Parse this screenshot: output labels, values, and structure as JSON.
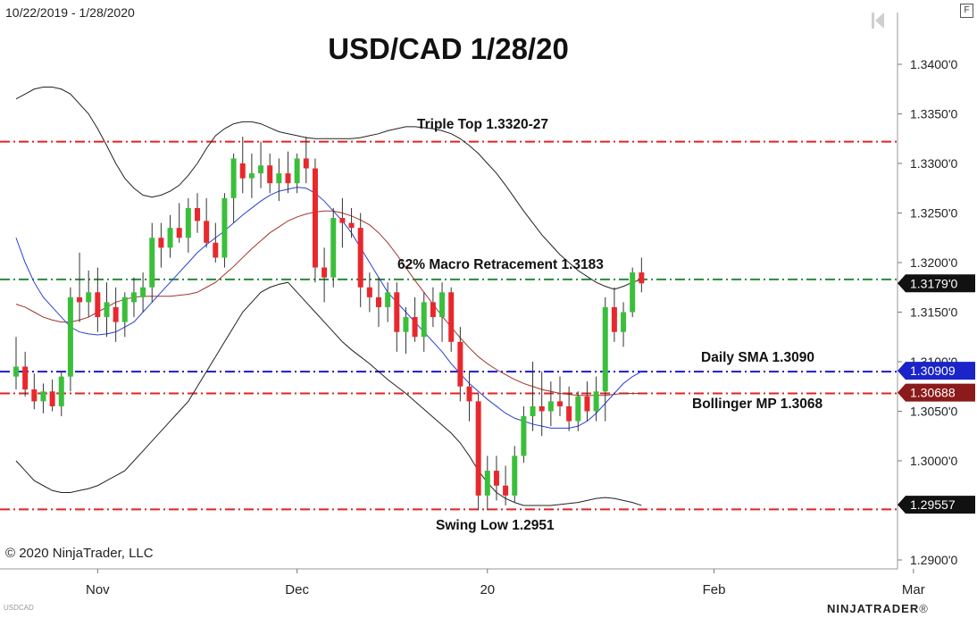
{
  "header": {
    "date_range": "10/22/2019 - 1/28/2020",
    "f_button": "F"
  },
  "title": "USD/CAD 1/28/20",
  "copyright": "© 2020 NinjaTrader, LLC",
  "symbol_label": "USDCAD",
  "brand": {
    "name": "NINJATRADER",
    "reg": "®"
  },
  "annotations": {
    "triple_top": "Triple Top 1.3320-27",
    "retracement": "62% Macro Retracement 1.3183",
    "daily_sma": "Daily SMA 1.3090",
    "bollinger_mp": "Bollinger MP 1.3068",
    "swing_low": "Swing Low 1.2951"
  },
  "colors": {
    "up": "#3bbf3b",
    "down": "#e8282d",
    "sma": "#2a3fd6",
    "mid": "#a0342b",
    "band": "#222222",
    "red_line": "#e32222",
    "green_line": "#2a8a3a",
    "blue_line": "#1a1ad0",
    "price_tag": "#111111",
    "sma_tag": "#1a24c8",
    "mp_tag": "#8b1a1a"
  },
  "chart_data": {
    "type": "candlestick",
    "title": "USD/CAD 1/28/20",
    "x_range": [
      "2019-10-22",
      "2020-01-28"
    ],
    "y_axis": {
      "min": 1.289,
      "max": 1.3425,
      "ticks": [
        1.34,
        1.335,
        1.33,
        1.325,
        1.32,
        1.315,
        1.31,
        1.305,
        1.3,
        1.29
      ],
      "tick_labels": [
        "1.3400'0",
        "1.3350'0",
        "1.3300'0",
        "1.3250'0",
        "1.3200'0",
        "1.3150'0",
        "1.3100'0",
        "1.3050'0",
        "1.3000'0",
        "1.2900'0"
      ]
    },
    "x_axis": {
      "labels": [
        "Nov",
        "Dec",
        "20",
        "Feb",
        "Mar"
      ],
      "label_bar_index": [
        9,
        31,
        52,
        77,
        99
      ]
    },
    "ohlc": [
      [
        1.3085,
        1.3125,
        1.3072,
        1.3095
      ],
      [
        1.3095,
        1.311,
        1.3065,
        1.3072
      ],
      [
        1.3072,
        1.3088,
        1.3052,
        1.306
      ],
      [
        1.306,
        1.3078,
        1.3048,
        1.307
      ],
      [
        1.307,
        1.3082,
        1.305,
        1.3055
      ],
      [
        1.3055,
        1.309,
        1.3045,
        1.3085
      ],
      [
        1.3085,
        1.3175,
        1.307,
        1.3165
      ],
      [
        1.3165,
        1.321,
        1.314,
        1.316
      ],
      [
        1.316,
        1.3192,
        1.3145,
        1.317
      ],
      [
        1.317,
        1.3195,
        1.313,
        1.3145
      ],
      [
        1.3145,
        1.318,
        1.3125,
        1.316
      ],
      [
        1.3155,
        1.3175,
        1.312,
        1.314
      ],
      [
        1.314,
        1.317,
        1.3125,
        1.3165
      ],
      [
        1.316,
        1.3185,
        1.3145,
        1.317
      ],
      [
        1.3165,
        1.319,
        1.315,
        1.3175
      ],
      [
        1.3175,
        1.324,
        1.316,
        1.3225
      ],
      [
        1.3225,
        1.324,
        1.3195,
        1.3215
      ],
      [
        1.3215,
        1.3248,
        1.3205,
        1.3235
      ],
      [
        1.3235,
        1.326,
        1.322,
        1.3225
      ],
      [
        1.3225,
        1.3265,
        1.321,
        1.3255
      ],
      [
        1.3255,
        1.327,
        1.323,
        1.3242
      ],
      [
        1.3242,
        1.3265,
        1.3215,
        1.322
      ],
      [
        1.322,
        1.324,
        1.32,
        1.3205
      ],
      [
        1.3205,
        1.327,
        1.3195,
        1.3265
      ],
      [
        1.3265,
        1.331,
        1.324,
        1.3305
      ],
      [
        1.33,
        1.3327,
        1.327,
        1.3285
      ],
      [
        1.3285,
        1.331,
        1.3265,
        1.329
      ],
      [
        1.329,
        1.3322,
        1.3275,
        1.3298
      ],
      [
        1.3298,
        1.331,
        1.327,
        1.328
      ],
      [
        1.328,
        1.3305,
        1.3262,
        1.329
      ],
      [
        1.329,
        1.3312,
        1.327,
        1.328
      ],
      [
        1.328,
        1.331,
        1.327,
        1.3305
      ],
      [
        1.3305,
        1.3327,
        1.328,
        1.3295
      ],
      [
        1.3295,
        1.3305,
        1.318,
        1.3195
      ],
      [
        1.3195,
        1.3215,
        1.316,
        1.3185
      ],
      [
        1.3185,
        1.3255,
        1.3175,
        1.3245
      ],
      [
        1.3245,
        1.3265,
        1.3215,
        1.324
      ],
      [
        1.324,
        1.3255,
        1.3225,
        1.3235
      ],
      [
        1.3235,
        1.325,
        1.3155,
        1.3175
      ],
      [
        1.3175,
        1.319,
        1.315,
        1.3165
      ],
      [
        1.3165,
        1.3185,
        1.3135,
        1.3155
      ],
      [
        1.3155,
        1.318,
        1.314,
        1.317
      ],
      [
        1.317,
        1.318,
        1.311,
        1.313
      ],
      [
        1.313,
        1.3155,
        1.3108,
        1.3145
      ],
      [
        1.3145,
        1.3165,
        1.312,
        1.3125
      ],
      [
        1.3125,
        1.317,
        1.311,
        1.316
      ],
      [
        1.316,
        1.3175,
        1.3135,
        1.3145
      ],
      [
        1.3145,
        1.318,
        1.312,
        1.317
      ],
      [
        1.317,
        1.3175,
        1.311,
        1.312
      ],
      [
        1.312,
        1.3135,
        1.306,
        1.3075
      ],
      [
        1.3075,
        1.309,
        1.304,
        1.306
      ],
      [
        1.306,
        1.3068,
        1.295,
        1.2965
      ],
      [
        1.2965,
        1.3005,
        1.295,
        1.299
      ],
      [
        1.299,
        1.3005,
        1.296,
        1.2975
      ],
      [
        1.2975,
        1.2995,
        1.2955,
        1.2965
      ],
      [
        1.2965,
        1.3015,
        1.2958,
        1.3005
      ],
      [
        1.3005,
        1.3055,
        1.2998,
        1.3045
      ],
      [
        1.3045,
        1.31,
        1.303,
        1.3055
      ],
      [
        1.3055,
        1.309,
        1.3025,
        1.305
      ],
      [
        1.305,
        1.308,
        1.3035,
        1.306
      ],
      [
        1.306,
        1.3085,
        1.3045,
        1.3055
      ],
      [
        1.3055,
        1.3075,
        1.303,
        1.304
      ],
      [
        1.304,
        1.307,
        1.303,
        1.3065
      ],
      [
        1.3065,
        1.308,
        1.304,
        1.305
      ],
      [
        1.305,
        1.3085,
        1.304,
        1.307
      ],
      [
        1.307,
        1.3165,
        1.304,
        1.3155
      ],
      [
        1.3155,
        1.3175,
        1.312,
        1.313
      ],
      [
        1.313,
        1.316,
        1.3115,
        1.315
      ],
      [
        1.315,
        1.3195,
        1.3145,
        1.319
      ],
      [
        1.319,
        1.3205,
        1.317,
        1.3179
      ]
    ],
    "indicators": {
      "sma": [
        1.3225,
        1.32,
        1.318,
        1.3165,
        1.3155,
        1.3145,
        1.3135,
        1.313,
        1.3128,
        1.3127,
        1.3128,
        1.313,
        1.3135,
        1.314,
        1.315,
        1.316,
        1.317,
        1.318,
        1.319,
        1.32,
        1.321,
        1.3218,
        1.3225,
        1.3232,
        1.324,
        1.3248,
        1.3255,
        1.3262,
        1.3268,
        1.3272,
        1.3274,
        1.3276,
        1.3275,
        1.327,
        1.3262,
        1.3252,
        1.3242,
        1.323,
        1.3215,
        1.32,
        1.3185,
        1.317,
        1.316,
        1.315,
        1.314,
        1.313,
        1.312,
        1.311,
        1.3098,
        1.3088,
        1.3078,
        1.307,
        1.3062,
        1.3055,
        1.3048,
        1.3043,
        1.304,
        1.3037,
        1.3035,
        1.3033,
        1.3033,
        1.3033,
        1.3035,
        1.304,
        1.3048,
        1.3058,
        1.3068,
        1.3078,
        1.3085,
        1.309
      ],
      "bollinger_mid": [
        1.3158,
        1.3155,
        1.315,
        1.3145,
        1.3142,
        1.314,
        1.314,
        1.3142,
        1.3145,
        1.315,
        1.3155,
        1.316,
        1.3163,
        1.3165,
        1.3166,
        1.3166,
        1.3166,
        1.3166,
        1.3167,
        1.3168,
        1.317,
        1.3175,
        1.318,
        1.3188,
        1.3196,
        1.3205,
        1.3214,
        1.3222,
        1.323,
        1.3236,
        1.3242,
        1.3246,
        1.3249,
        1.3251,
        1.3252,
        1.3252,
        1.325,
        1.3247,
        1.3243,
        1.3238,
        1.323,
        1.322,
        1.3208,
        1.3195,
        1.3182,
        1.317,
        1.3158,
        1.3146,
        1.3135,
        1.3124,
        1.3114,
        1.3105,
        1.3098,
        1.3092,
        1.3087,
        1.3082,
        1.3078,
        1.3075,
        1.3072,
        1.307,
        1.3068,
        1.3067,
        1.3066,
        1.3066,
        1.3066,
        1.3066,
        1.3067,
        1.3068,
        1.3068,
        1.3068
      ],
      "bollinger_upper": [
        1.3365,
        1.337,
        1.3375,
        1.3377,
        1.3377,
        1.3375,
        1.337,
        1.336,
        1.335,
        1.3335,
        1.3318,
        1.33,
        1.3285,
        1.3275,
        1.3268,
        1.3266,
        1.3268,
        1.3272,
        1.3278,
        1.3288,
        1.33,
        1.3315,
        1.3328,
        1.3335,
        1.334,
        1.3342,
        1.3342,
        1.334,
        1.3336,
        1.3332,
        1.333,
        1.3328,
        1.3326,
        1.3325,
        1.3325,
        1.3325,
        1.3325,
        1.3325,
        1.3326,
        1.3328,
        1.333,
        1.3333,
        1.3335,
        1.3337,
        1.3337,
        1.3336,
        1.3335,
        1.3333,
        1.333,
        1.3325,
        1.3318,
        1.331,
        1.33,
        1.329,
        1.3278,
        1.3265,
        1.3252,
        1.324,
        1.3228,
        1.3218,
        1.3208,
        1.32,
        1.3192,
        1.3186,
        1.318,
        1.3176,
        1.3173,
        1.3176,
        1.318,
        1.3183
      ],
      "bollinger_lower": [
        1.3,
        1.299,
        1.298,
        1.2975,
        1.297,
        1.2968,
        1.2968,
        1.297,
        1.2972,
        1.2975,
        1.298,
        1.2985,
        1.299,
        1.3,
        1.301,
        1.302,
        1.303,
        1.304,
        1.305,
        1.306,
        1.3075,
        1.309,
        1.3105,
        1.312,
        1.3135,
        1.315,
        1.316,
        1.317,
        1.3175,
        1.3178,
        1.318,
        1.317,
        1.316,
        1.315,
        1.314,
        1.313,
        1.312,
        1.3112,
        1.3105,
        1.3098,
        1.309,
        1.3082,
        1.3075,
        1.3068,
        1.306,
        1.3052,
        1.3044,
        1.3036,
        1.3028,
        1.3018,
        1.3005,
        1.299,
        1.2978,
        1.2968,
        1.2962,
        1.2958,
        1.2955,
        1.2955,
        1.2955,
        1.2955,
        1.2956,
        1.2957,
        1.2958,
        1.296,
        1.2962,
        1.2963,
        1.2962,
        1.296,
        1.2958,
        1.2955
      ]
    },
    "horizontal_levels": [
      {
        "name": "Triple Top",
        "value": 1.3322,
        "style": "dash-dot",
        "color": "red"
      },
      {
        "name": "62% Macro Retracement",
        "value": 1.3183,
        "style": "dash-dot",
        "color": "green"
      },
      {
        "name": "Daily SMA",
        "value": 1.309,
        "style": "dash-dot",
        "color": "blue"
      },
      {
        "name": "Bollinger MP",
        "value": 1.3068,
        "style": "dash-dot",
        "color": "red"
      },
      {
        "name": "Swing Low",
        "value": 1.2951,
        "style": "dash-dot",
        "color": "red"
      }
    ],
    "price_tags": [
      {
        "label": "1.3179'0",
        "value": 1.3179,
        "kind": "price"
      },
      {
        "label": "1.30909",
        "value": 1.30909,
        "kind": "sma"
      },
      {
        "label": "1.30688",
        "value": 1.30688,
        "kind": "mp"
      },
      {
        "label": "1.29557",
        "value": 1.29557,
        "kind": "price"
      }
    ],
    "legend": "none",
    "grid": false
  }
}
